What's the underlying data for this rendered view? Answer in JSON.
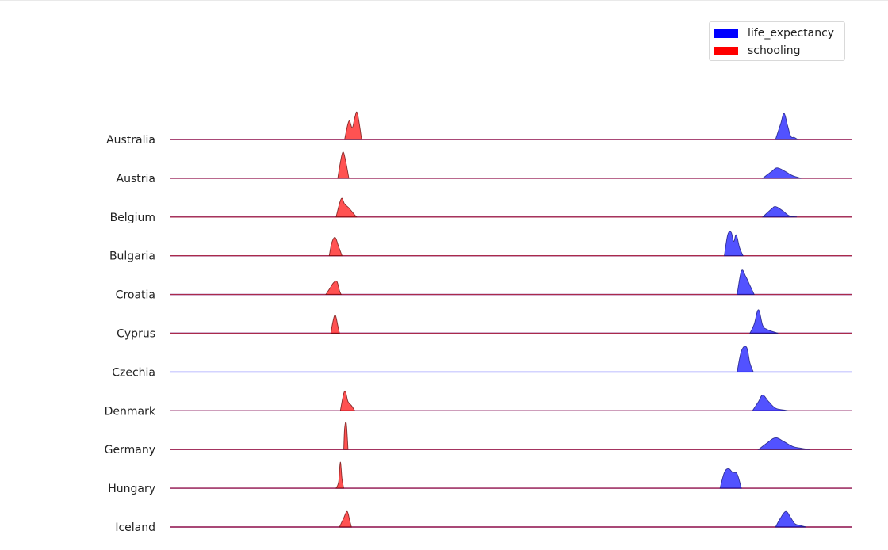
{
  "chart_data": {
    "type": "ridgeline",
    "categories": [
      "Australia",
      "Austria",
      "Belgium",
      "Bulgaria",
      "Croatia",
      "Cyprus",
      "Czechia",
      "Denmark",
      "Germany",
      "Hungary",
      "Iceland"
    ],
    "series": [
      {
        "name": "life_expectancy",
        "color": "#0000ff",
        "values": [
          [
            [
              81.0,
              0
            ],
            [
              81.6,
              0.6
            ],
            [
              82.0,
              1.0
            ],
            [
              82.4,
              0.55
            ],
            [
              82.8,
              0.12
            ],
            [
              83.2,
              0.08
            ],
            [
              83.6,
              0
            ]
          ],
          [
            [
              79.5,
              0
            ],
            [
              80.5,
              0.25
            ],
            [
              81.2,
              0.4
            ],
            [
              82.2,
              0.25
            ],
            [
              83.0,
              0.1
            ],
            [
              84.0,
              0
            ]
          ],
          [
            [
              79.5,
              0
            ],
            [
              80.5,
              0.3
            ],
            [
              81.0,
              0.4
            ],
            [
              81.8,
              0.25
            ],
            [
              82.6,
              0.05
            ],
            [
              83.5,
              0
            ]
          ],
          [
            [
              75.0,
              0
            ],
            [
              75.4,
              0.8
            ],
            [
              75.8,
              0.9
            ],
            [
              76.1,
              0.55
            ],
            [
              76.4,
              0.8
            ],
            [
              76.8,
              0.3
            ],
            [
              77.2,
              0
            ]
          ],
          [
            [
              76.5,
              0
            ],
            [
              77.0,
              0.9
            ],
            [
              77.5,
              0.7
            ],
            [
              78.0,
              0.35
            ],
            [
              78.5,
              0
            ]
          ],
          [
            [
              78.0,
              0
            ],
            [
              78.5,
              0.35
            ],
            [
              79.0,
              0.9
            ],
            [
              79.5,
              0.3
            ],
            [
              80.0,
              0.15
            ],
            [
              80.8,
              0.05
            ],
            [
              81.3,
              0
            ]
          ],
          [
            [
              76.5,
              0
            ],
            [
              77.0,
              0.8
            ],
            [
              77.6,
              0.95
            ],
            [
              78.0,
              0.35
            ],
            [
              78.4,
              0
            ]
          ],
          [
            [
              78.3,
              0
            ],
            [
              79.0,
              0.35
            ],
            [
              79.5,
              0.6
            ],
            [
              80.2,
              0.35
            ],
            [
              81.0,
              0.1
            ],
            [
              82.0,
              0.03
            ],
            [
              82.5,
              0
            ]
          ],
          [
            [
              79.0,
              0
            ],
            [
              80.0,
              0.25
            ],
            [
              81.0,
              0.45
            ],
            [
              82.0,
              0.3
            ],
            [
              83.0,
              0.12
            ],
            [
              84.0,
              0.05
            ],
            [
              85.0,
              0
            ]
          ],
          [
            [
              74.5,
              0
            ],
            [
              75.0,
              0.6
            ],
            [
              75.5,
              0.75
            ],
            [
              76.0,
              0.6
            ],
            [
              76.5,
              0.55
            ],
            [
              77.0,
              0
            ]
          ],
          [
            [
              81.0,
              0
            ],
            [
              81.5,
              0.3
            ],
            [
              82.2,
              0.6
            ],
            [
              82.8,
              0.35
            ],
            [
              83.3,
              0.12
            ],
            [
              84.0,
              0.05
            ],
            [
              84.6,
              0
            ]
          ]
        ]
      },
      {
        "name": "schooling",
        "color": "#ff0000",
        "values": [
          [
            [
              30.5,
              0
            ],
            [
              31.0,
              0.7
            ],
            [
              31.4,
              0.45
            ],
            [
              31.7,
              0.85
            ],
            [
              32.0,
              1.0
            ],
            [
              32.5,
              0
            ]
          ],
          [
            [
              29.7,
              0
            ],
            [
              30.0,
              0.6
            ],
            [
              30.3,
              1.0
            ],
            [
              30.6,
              0.7
            ],
            [
              31.0,
              0
            ]
          ],
          [
            [
              29.5,
              0
            ],
            [
              30.1,
              0.7
            ],
            [
              30.5,
              0.5
            ],
            [
              31.0,
              0.35
            ],
            [
              31.5,
              0.15
            ],
            [
              31.9,
              0
            ]
          ],
          [
            [
              28.7,
              0
            ],
            [
              29.0,
              0.5
            ],
            [
              29.4,
              0.7
            ],
            [
              29.8,
              0.35
            ],
            [
              30.2,
              0
            ]
          ],
          [
            [
              28.3,
              0
            ],
            [
              28.8,
              0.25
            ],
            [
              29.2,
              0.45
            ],
            [
              29.6,
              0.5
            ],
            [
              29.9,
              0.15
            ],
            [
              30.1,
              0
            ]
          ],
          [
            [
              28.9,
              0
            ],
            [
              29.1,
              0.4
            ],
            [
              29.4,
              0.7
            ],
            [
              29.7,
              0.3
            ],
            [
              29.9,
              0
            ]
          ],
          [],
          [
            [
              30.0,
              0
            ],
            [
              30.5,
              0.75
            ],
            [
              30.9,
              0.35
            ],
            [
              31.3,
              0.2
            ],
            [
              31.7,
              0
            ]
          ],
          [
            [
              30.4,
              0
            ],
            [
              30.5,
              0.8
            ],
            [
              30.7,
              1.0
            ],
            [
              30.9,
              0
            ]
          ],
          [
            [
              29.5,
              0
            ],
            [
              29.8,
              0.25
            ],
            [
              30.0,
              1.0
            ],
            [
              30.2,
              0.35
            ],
            [
              30.4,
              0
            ]
          ],
          [
            [
              29.9,
              0
            ],
            [
              30.4,
              0.35
            ],
            [
              30.8,
              0.6
            ],
            [
              31.1,
              0.25
            ],
            [
              31.3,
              0
            ]
          ]
        ]
      }
    ],
    "xlim": [
      10,
      90
    ],
    "xlabel": "",
    "ylabel": "",
    "title": "",
    "legend_position": "top-right",
    "grid": false
  },
  "legend": {
    "items": [
      {
        "label": "life_expectancy",
        "color": "#0000ff"
      },
      {
        "label": "schooling",
        "color": "#ff0000"
      }
    ]
  }
}
